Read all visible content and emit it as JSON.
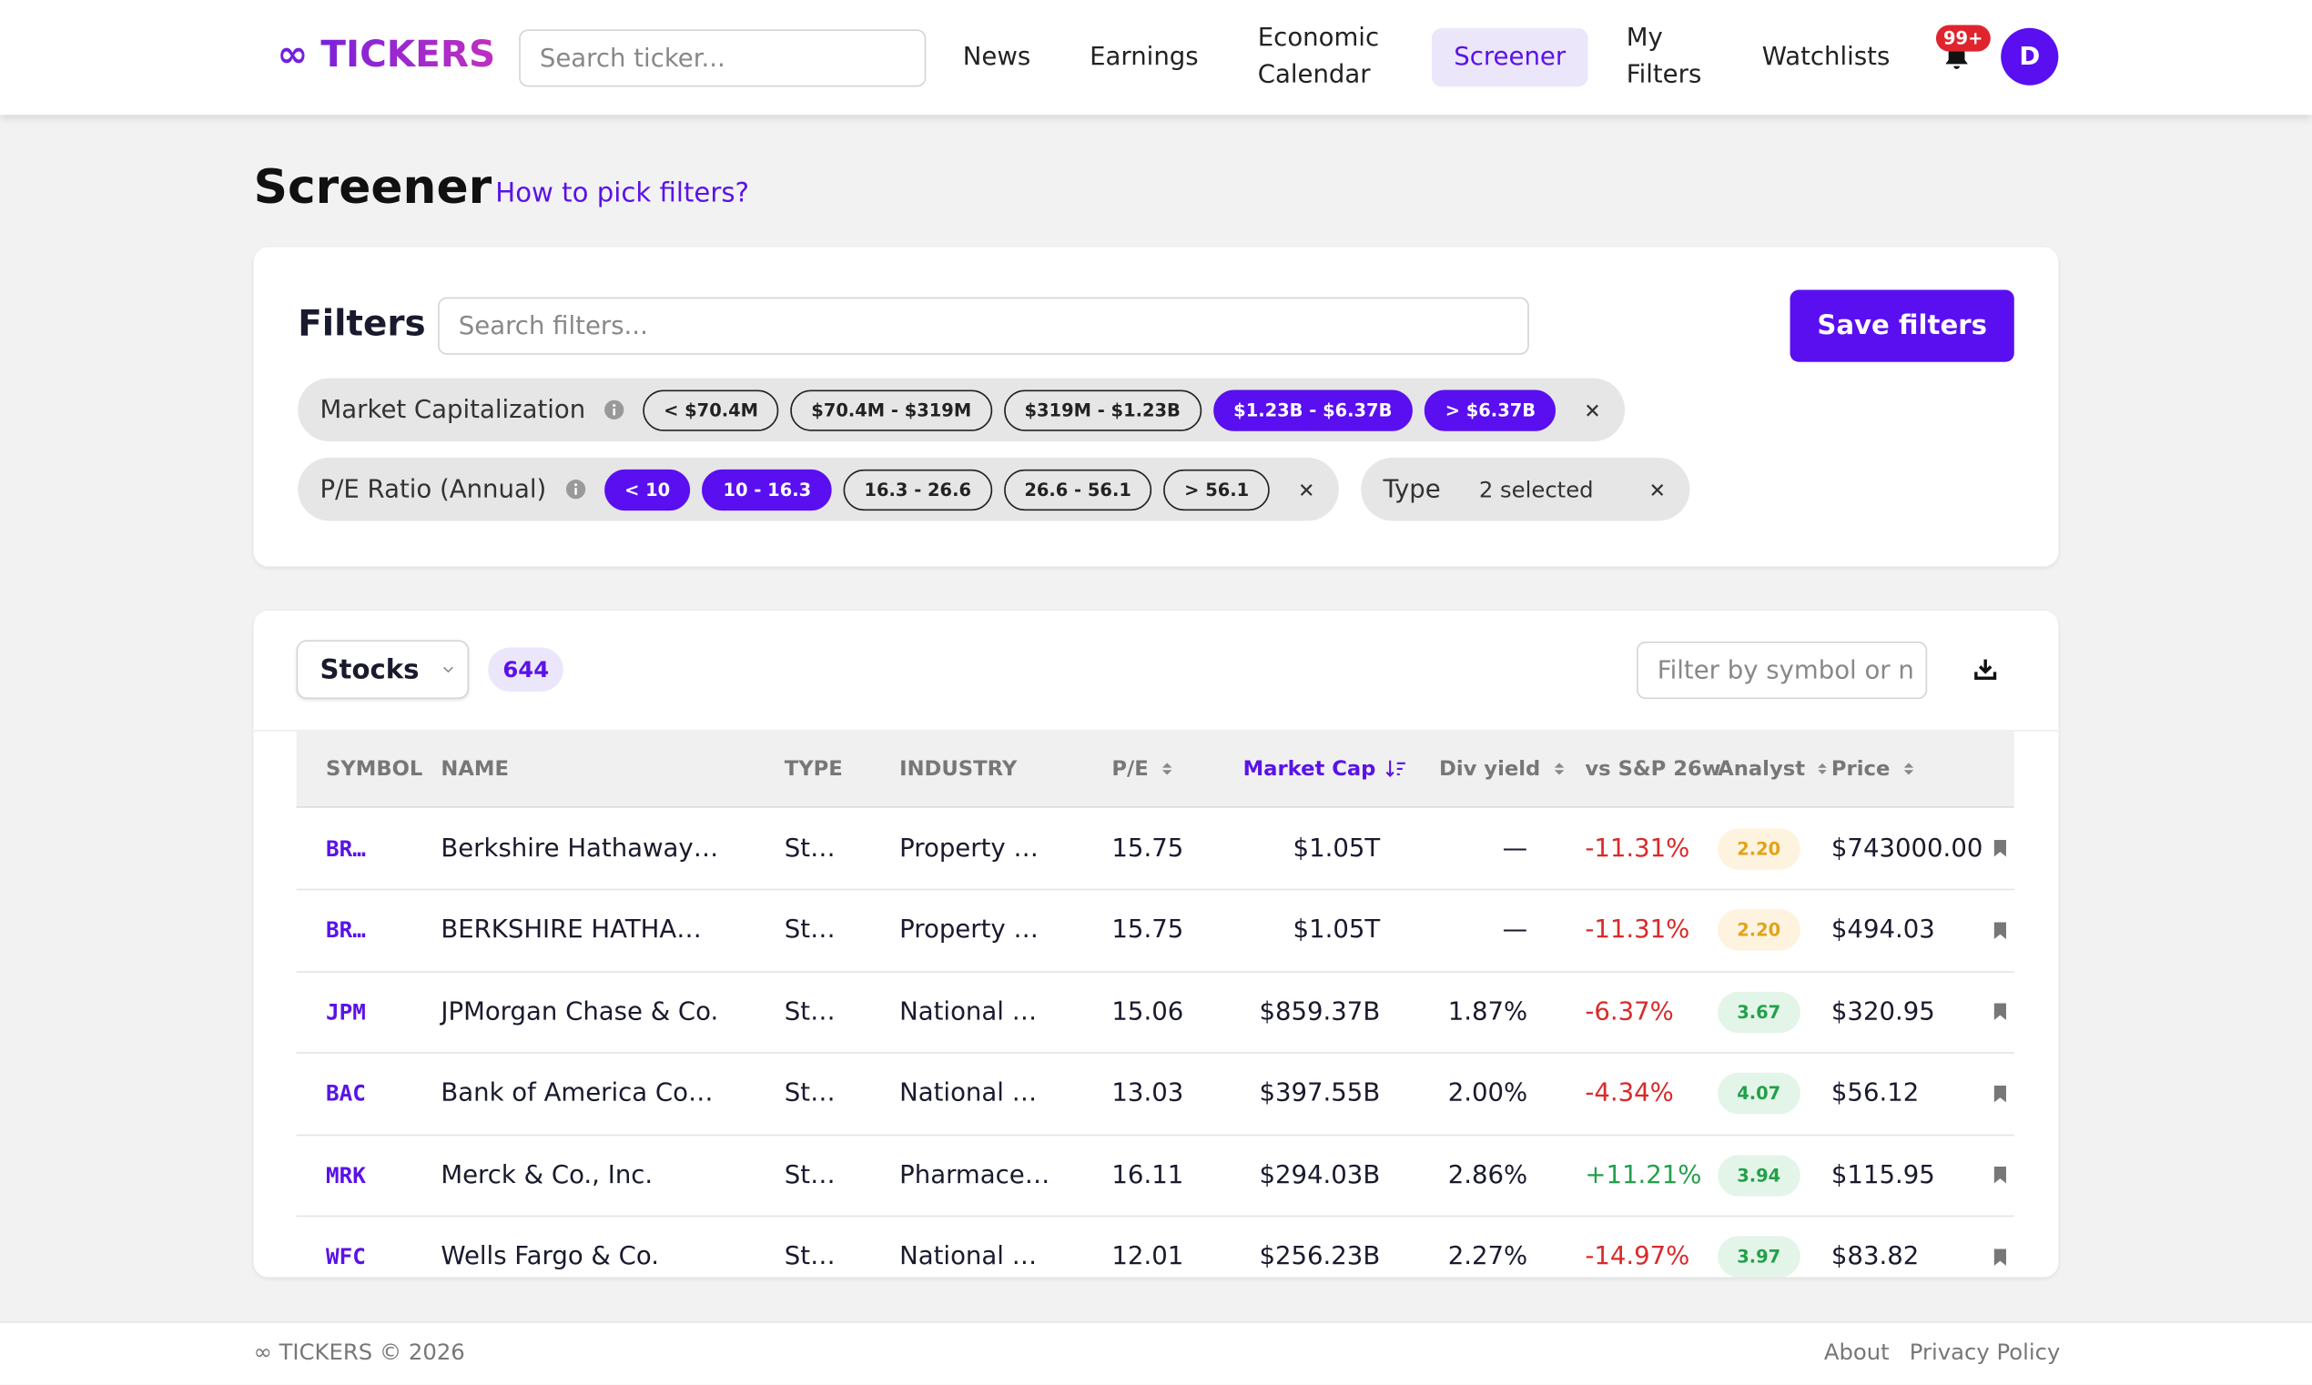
{
  "header": {
    "logo": "∞ TICKERS",
    "search_placeholder": "Search ticker...",
    "nav": [
      {
        "label": "News",
        "active": false
      },
      {
        "label": "Earnings",
        "active": false
      },
      {
        "label": "Economic Calendar",
        "active": false
      },
      {
        "label": "Screener",
        "active": true
      },
      {
        "label": "My Filters",
        "active": false
      },
      {
        "label": "Watchlists",
        "active": false
      }
    ],
    "notifications": "99+",
    "avatar": "D"
  },
  "page": {
    "title": "Screener",
    "help_link": "How to pick filters?"
  },
  "filters": {
    "title": "Filters",
    "search_placeholder": "Search filters...",
    "save_button": "Save filters",
    "groups": [
      {
        "label": "Market Capitalization",
        "info": true,
        "options": [
          {
            "label": "< $70.4M",
            "selected": false
          },
          {
            "label": "$70.4M - $319M",
            "selected": false
          },
          {
            "label": "$319M - $1.23B",
            "selected": false
          },
          {
            "label": "$1.23B - $6.37B",
            "selected": true
          },
          {
            "label": "> $6.37B",
            "selected": true
          }
        ]
      },
      {
        "label": "P/E Ratio (Annual)",
        "info": true,
        "options": [
          {
            "label": "< 10",
            "selected": true
          },
          {
            "label": "10 - 16.3",
            "selected": true
          },
          {
            "label": "16.3 - 26.6",
            "selected": false
          },
          {
            "label": "26.6 - 56.1",
            "selected": false
          },
          {
            "label": "> 56.1",
            "selected": false
          }
        ]
      },
      {
        "label": "Type",
        "info": false,
        "summary": "2 selected"
      }
    ]
  },
  "results": {
    "asset_type": "Stocks",
    "count": 644,
    "filter_placeholder": "Filter by symbol or n",
    "columns": [
      {
        "label": "SYMBOL",
        "sortable": false,
        "sorted": false
      },
      {
        "label": "NAME",
        "sortable": false,
        "sorted": false
      },
      {
        "label": "TYPE",
        "sortable": false,
        "sorted": false
      },
      {
        "label": "INDUSTRY",
        "sortable": false,
        "sorted": false
      },
      {
        "label": "P/E",
        "sortable": true,
        "sorted": false
      },
      {
        "label": "Market Cap",
        "sortable": true,
        "sorted": true
      },
      {
        "label": "Div yield",
        "sortable": true,
        "sorted": false
      },
      {
        "label": "vs S&P 26w",
        "sortable": true,
        "sorted": false
      },
      {
        "label": "Analyst",
        "sortable": true,
        "sorted": false
      },
      {
        "label": "Price",
        "sortable": true,
        "sorted": false
      }
    ],
    "rows": [
      [
        "BR…",
        "Berkshire Hathaway…",
        "St…",
        "Property …",
        "15.75",
        "$1.05T",
        "—",
        "-11.31%",
        "2.20",
        "$743000.00"
      ],
      [
        "BR…",
        "BERKSHIRE HATHA…",
        "St…",
        "Property …",
        "15.75",
        "$1.05T",
        "—",
        "-11.31%",
        "2.20",
        "$494.03"
      ],
      [
        "JPM",
        "JPMorgan Chase & Co.",
        "St…",
        "National …",
        "15.06",
        "$859.37B",
        "1.87%",
        "-6.37%",
        "3.67",
        "$320.95"
      ],
      [
        "BAC",
        "Bank of America Co…",
        "St…",
        "National …",
        "13.03",
        "$397.55B",
        "2.00%",
        "-4.34%",
        "4.07",
        "$56.12"
      ],
      [
        "MRK",
        "Merck & Co., Inc.",
        "St…",
        "Pharmace…",
        "16.11",
        "$294.03B",
        "2.86%",
        "+11.21%",
        "3.94",
        "$115.95"
      ],
      [
        "WFC",
        "Wells Fargo & Co.",
        "St…",
        "National …",
        "12.01",
        "$256.23B",
        "2.27%",
        "-14.97%",
        "3.97",
        "$83.82"
      ]
    ]
  },
  "footer": {
    "brand": "∞ TICKERS © 2026",
    "links": [
      "About",
      "Privacy Policy"
    ]
  }
}
